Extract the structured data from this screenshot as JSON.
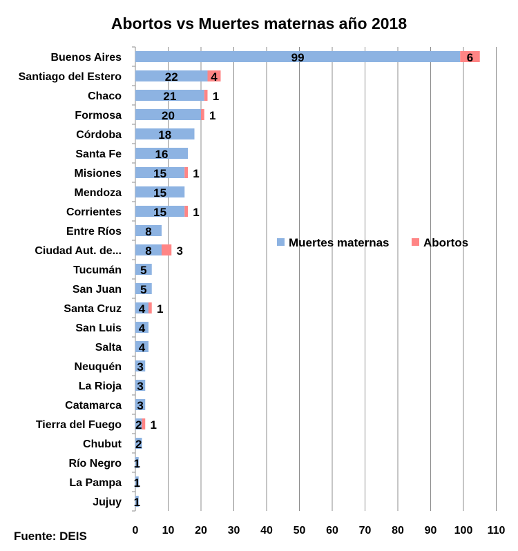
{
  "chart_data": {
    "type": "bar",
    "orientation": "horizontal",
    "stacked": true,
    "title": "Abortos vs Muertes maternas año 2018",
    "source": "Fuente: DEIS",
    "categories": [
      "Buenos Aires",
      "Santiago del Estero",
      "Chaco",
      "Formosa",
      "Córdoba",
      "Santa Fe",
      "Misiones",
      "Mendoza",
      "Corrientes",
      "Entre Ríos",
      "Ciudad Aut. de...",
      "Tucumán",
      "San Juan",
      "Santa Cruz",
      "San Luis",
      "Salta",
      "Neuquén",
      "La Rioja",
      "Catamarca",
      "Tierra del Fuego",
      "Chubut",
      "Río Negro",
      "La Pampa",
      "Jujuy"
    ],
    "series": [
      {
        "name": "Muertes maternas",
        "color": "#8DB3E2",
        "values": [
          99,
          22,
          21,
          20,
          18,
          16,
          15,
          15,
          15,
          8,
          8,
          5,
          5,
          4,
          4,
          4,
          3,
          3,
          3,
          2,
          2,
          1,
          1,
          1
        ]
      },
      {
        "name": "Abortos",
        "color": "#FF8585",
        "values": [
          6,
          4,
          1,
          1,
          0,
          0,
          1,
          0,
          1,
          0,
          3,
          0,
          0,
          1,
          0,
          0,
          0,
          0,
          0,
          1,
          0,
          0,
          0,
          0
        ]
      }
    ],
    "xlim": [
      0,
      110
    ],
    "xticks": [
      0,
      10,
      20,
      30,
      40,
      50,
      60,
      70,
      80,
      90,
      100,
      110
    ],
    "grid": "vertical",
    "legend": "center-right"
  }
}
